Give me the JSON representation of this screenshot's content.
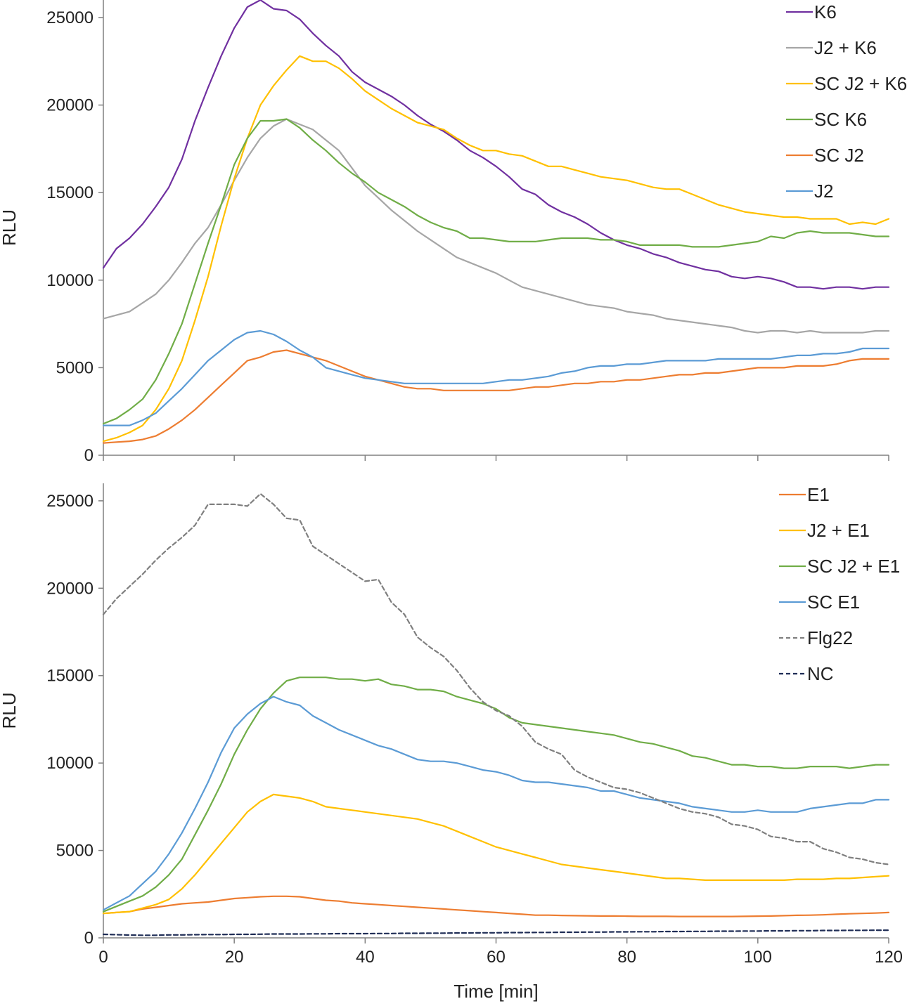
{
  "chart_data": [
    {
      "type": "line",
      "panel": "top",
      "title": "",
      "xlabel": "",
      "ylabel": "RLU",
      "xlim": [
        0,
        120
      ],
      "ylim": [
        0,
        26000
      ],
      "xticks": [
        0,
        20,
        40,
        60,
        80,
        100,
        120
      ],
      "yticks": [
        0,
        5000,
        10000,
        15000,
        20000,
        25000
      ],
      "show_x_tick_labels": false,
      "grid": false,
      "legend_position": "top-right",
      "x": [
        0,
        2,
        4,
        6,
        8,
        10,
        12,
        14,
        16,
        18,
        20,
        22,
        24,
        26,
        28,
        30,
        32,
        34,
        36,
        38,
        40,
        42,
        44,
        46,
        48,
        50,
        52,
        54,
        56,
        58,
        60,
        62,
        64,
        66,
        68,
        70,
        72,
        74,
        76,
        78,
        80,
        82,
        84,
        86,
        88,
        90,
        92,
        94,
        96,
        98,
        100,
        102,
        104,
        106,
        108,
        110,
        112,
        114,
        116,
        118,
        120
      ],
      "series": [
        {
          "name": "K6",
          "color": "#7030A0",
          "dashed": false,
          "values": [
            10700,
            11800,
            12400,
            13200,
            14200,
            15300,
            16900,
            19100,
            21000,
            22800,
            24400,
            25600,
            26000,
            25500,
            25400,
            24900,
            24100,
            23400,
            22800,
            21900,
            21300,
            20900,
            20500,
            20000,
            19400,
            18900,
            18500,
            18000,
            17400,
            17000,
            16500,
            15900,
            15200,
            14900,
            14300,
            13900,
            13600,
            13200,
            12700,
            12300,
            12000,
            11800,
            11500,
            11300,
            11000,
            10800,
            10600,
            10500,
            10200,
            10100,
            10200,
            10100,
            9900,
            9600,
            9600,
            9500,
            9600,
            9600,
            9500,
            9600,
            9600
          ]
        },
        {
          "name": "J2 + K6",
          "color": "#A6A6A6",
          "dashed": false,
          "values": [
            7800,
            8000,
            8200,
            8700,
            9200,
            10000,
            11000,
            12100,
            13000,
            14300,
            15700,
            17000,
            18100,
            18800,
            19200,
            18900,
            18600,
            18000,
            17400,
            16400,
            15400,
            14700,
            14000,
            13400,
            12800,
            12300,
            11800,
            11300,
            11000,
            10700,
            10400,
            10000,
            9600,
            9400,
            9200,
            9000,
            8800,
            8600,
            8500,
            8400,
            8200,
            8100,
            8000,
            7800,
            7700,
            7600,
            7500,
            7400,
            7300,
            7100,
            7000,
            7100,
            7100,
            7000,
            7100,
            7000,
            7000,
            7000,
            7000,
            7100,
            7100
          ]
        },
        {
          "name": "SC J2 + K6",
          "color": "#FFC000",
          "dashed": false,
          "values": [
            800,
            1000,
            1300,
            1700,
            2600,
            3800,
            5400,
            7700,
            10200,
            13100,
            15800,
            18100,
            20000,
            21100,
            22000,
            22800,
            22500,
            22500,
            22100,
            21500,
            20800,
            20300,
            19800,
            19400,
            19000,
            18800,
            18600,
            18100,
            17700,
            17400,
            17400,
            17200,
            17100,
            16800,
            16500,
            16500,
            16300,
            16100,
            15900,
            15800,
            15700,
            15500,
            15300,
            15200,
            15200,
            14900,
            14600,
            14300,
            14100,
            13900,
            13800,
            13700,
            13600,
            13600,
            13500,
            13500,
            13500,
            13200,
            13300,
            13200,
            13500
          ]
        },
        {
          "name": "SC K6",
          "color": "#70AD47",
          "dashed": false,
          "values": [
            1800,
            2100,
            2600,
            3200,
            4300,
            5800,
            7500,
            9800,
            12100,
            14300,
            16600,
            18100,
            19100,
            19100,
            19200,
            18700,
            18000,
            17400,
            16700,
            16100,
            15600,
            15000,
            14600,
            14200,
            13700,
            13300,
            13000,
            12800,
            12400,
            12400,
            12300,
            12200,
            12200,
            12200,
            12300,
            12400,
            12400,
            12400,
            12300,
            12300,
            12200,
            12000,
            12000,
            12000,
            12000,
            11900,
            11900,
            11900,
            12000,
            12100,
            12200,
            12500,
            12400,
            12700,
            12800,
            12700,
            12700,
            12700,
            12600,
            12500,
            12500
          ]
        },
        {
          "name": "SC J2",
          "color": "#ED7D31",
          "dashed": false,
          "values": [
            700,
            750,
            800,
            900,
            1100,
            1500,
            2000,
            2600,
            3300,
            4000,
            4700,
            5400,
            5600,
            5900,
            6000,
            5800,
            5600,
            5400,
            5100,
            4800,
            4500,
            4300,
            4100,
            3900,
            3800,
            3800,
            3700,
            3700,
            3700,
            3700,
            3700,
            3700,
            3800,
            3900,
            3900,
            4000,
            4100,
            4100,
            4200,
            4200,
            4300,
            4300,
            4400,
            4500,
            4600,
            4600,
            4700,
            4700,
            4800,
            4900,
            5000,
            5000,
            5000,
            5100,
            5100,
            5100,
            5200,
            5400,
            5500,
            5500,
            5500
          ]
        },
        {
          "name": "J2",
          "color": "#5B9BD5",
          "dashed": false,
          "values": [
            1700,
            1700,
            1700,
            2000,
            2400,
            3100,
            3800,
            4600,
            5400,
            6000,
            6600,
            7000,
            7100,
            6900,
            6500,
            6000,
            5600,
            5000,
            4800,
            4600,
            4400,
            4300,
            4200,
            4100,
            4100,
            4100,
            4100,
            4100,
            4100,
            4100,
            4200,
            4300,
            4300,
            4400,
            4500,
            4700,
            4800,
            5000,
            5100,
            5100,
            5200,
            5200,
            5300,
            5400,
            5400,
            5400,
            5400,
            5500,
            5500,
            5500,
            5500,
            5500,
            5600,
            5700,
            5700,
            5800,
            5800,
            5900,
            6100,
            6100,
            6100
          ]
        }
      ]
    },
    {
      "type": "line",
      "panel": "bottom",
      "title": "",
      "xlabel": "Time [min]",
      "ylabel": "RLU",
      "xlim": [
        0,
        120
      ],
      "ylim": [
        0,
        26000
      ],
      "xticks": [
        0,
        20,
        40,
        60,
        80,
        100,
        120
      ],
      "yticks": [
        0,
        5000,
        10000,
        15000,
        20000,
        25000
      ],
      "show_x_tick_labels": true,
      "grid": false,
      "legend_position": "top-right",
      "x": [
        0,
        2,
        4,
        6,
        8,
        10,
        12,
        14,
        16,
        18,
        20,
        22,
        24,
        26,
        28,
        30,
        32,
        34,
        36,
        38,
        40,
        42,
        44,
        46,
        48,
        50,
        52,
        54,
        56,
        58,
        60,
        62,
        64,
        66,
        68,
        70,
        72,
        74,
        76,
        78,
        80,
        82,
        84,
        86,
        88,
        90,
        92,
        94,
        96,
        98,
        100,
        102,
        104,
        106,
        108,
        110,
        112,
        114,
        116,
        118,
        120
      ],
      "series": [
        {
          "name": "E1",
          "color": "#ED7D31",
          "dashed": false,
          "values": [
            1400,
            1450,
            1500,
            1650,
            1750,
            1850,
            1950,
            2000,
            2050,
            2150,
            2250,
            2300,
            2350,
            2380,
            2380,
            2350,
            2250,
            2150,
            2100,
            2000,
            1950,
            1900,
            1850,
            1800,
            1750,
            1700,
            1650,
            1600,
            1550,
            1500,
            1450,
            1400,
            1350,
            1300,
            1300,
            1280,
            1270,
            1260,
            1250,
            1250,
            1240,
            1230,
            1230,
            1230,
            1220,
            1220,
            1220,
            1220,
            1220,
            1230,
            1240,
            1250,
            1270,
            1290,
            1300,
            1320,
            1350,
            1380,
            1400,
            1420,
            1450
          ]
        },
        {
          "name": "J2 + E1",
          "color": "#FFC000",
          "dashed": false,
          "values": [
            1400,
            1450,
            1500,
            1700,
            1900,
            2200,
            2800,
            3600,
            4500,
            5400,
            6300,
            7200,
            7800,
            8200,
            8100,
            8000,
            7800,
            7500,
            7400,
            7300,
            7200,
            7100,
            7000,
            6900,
            6800,
            6600,
            6400,
            6100,
            5800,
            5500,
            5200,
            5000,
            4800,
            4600,
            4400,
            4200,
            4100,
            4000,
            3900,
            3800,
            3700,
            3600,
            3500,
            3400,
            3400,
            3350,
            3300,
            3300,
            3300,
            3300,
            3300,
            3300,
            3300,
            3350,
            3350,
            3350,
            3400,
            3400,
            3450,
            3500,
            3550
          ]
        },
        {
          "name": "SC J2 + E1",
          "color": "#70AD47",
          "dashed": false,
          "values": [
            1500,
            1800,
            2100,
            2400,
            2900,
            3600,
            4500,
            5900,
            7300,
            8800,
            10500,
            11900,
            13100,
            14000,
            14700,
            14900,
            14900,
            14900,
            14800,
            14800,
            14700,
            14800,
            14500,
            14400,
            14200,
            14200,
            14100,
            13800,
            13600,
            13400,
            13100,
            12600,
            12300,
            12200,
            12100,
            12000,
            11900,
            11800,
            11700,
            11600,
            11400,
            11200,
            11100,
            10900,
            10700,
            10400,
            10300,
            10100,
            9900,
            9900,
            9800,
            9800,
            9700,
            9700,
            9800,
            9800,
            9800,
            9700,
            9800,
            9900,
            9900
          ]
        },
        {
          "name": "SC E1",
          "color": "#5B9BD5",
          "dashed": false,
          "values": [
            1600,
            2000,
            2400,
            3100,
            3800,
            4800,
            6000,
            7400,
            8900,
            10600,
            12000,
            12800,
            13400,
            13800,
            13500,
            13300,
            12700,
            12300,
            11900,
            11600,
            11300,
            11000,
            10800,
            10500,
            10200,
            10100,
            10100,
            10000,
            9800,
            9600,
            9500,
            9300,
            9000,
            8900,
            8900,
            8800,
            8700,
            8600,
            8400,
            8400,
            8200,
            8000,
            7900,
            7800,
            7700,
            7500,
            7400,
            7300,
            7200,
            7200,
            7300,
            7200,
            7200,
            7200,
            7400,
            7500,
            7600,
            7700,
            7700,
            7900,
            7900
          ]
        },
        {
          "name": "Flg22",
          "color": "#7F7F7F",
          "dashed": true,
          "values": [
            18500,
            19400,
            20100,
            20800,
            21600,
            22300,
            22900,
            23600,
            24800,
            24800,
            24800,
            24700,
            25400,
            24800,
            24000,
            23900,
            22400,
            21900,
            21400,
            20900,
            20400,
            20500,
            19200,
            18500,
            17200,
            16600,
            16100,
            15300,
            14300,
            13500,
            13000,
            12700,
            12100,
            11200,
            10800,
            10500,
            9600,
            9200,
            8900,
            8600,
            8500,
            8300,
            8000,
            7700,
            7400,
            7200,
            7100,
            6900,
            6500,
            6400,
            6200,
            5800,
            5700,
            5500,
            5500,
            5100,
            4900,
            4600,
            4500,
            4300,
            4200
          ]
        },
        {
          "name": "NC",
          "color": "#1F2D56",
          "dashed": true,
          "values": [
            200,
            180,
            160,
            150,
            150,
            170,
            170,
            180,
            190,
            190,
            200,
            200,
            210,
            220,
            220,
            220,
            230,
            230,
            240,
            240,
            240,
            250,
            250,
            260,
            260,
            270,
            270,
            280,
            280,
            290,
            290,
            300,
            300,
            310,
            310,
            320,
            320,
            330,
            330,
            340,
            340,
            350,
            350,
            360,
            360,
            370,
            370,
            380,
            380,
            390,
            390,
            400,
            400,
            410,
            410,
            420,
            420,
            430,
            430,
            440,
            440
          ]
        }
      ]
    }
  ]
}
